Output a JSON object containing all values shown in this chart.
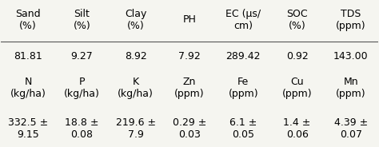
{
  "row1_headers": [
    "Sand\n(%)",
    "Silt\n(%)",
    "Clay\n(%)",
    "PH",
    "EC (μs/\ncm)",
    "SOC\n(%)",
    "TDS\n(ppm)"
  ],
  "row1_values": [
    "81.81",
    "9.27",
    "8.92",
    "7.92",
    "289.42",
    "0.92",
    "143.00"
  ],
  "row2_headers": [
    "N\n(kg/ha)",
    "P\n(kg/ha)",
    "K\n(kg/ha)",
    "Zn\n(ppm)",
    "Fe\n(ppm)",
    "Cu\n(ppm)",
    "Mn\n(ppm)"
  ],
  "row2_values": [
    "332.5 ±\n9.15",
    "18.8 ±\n0.08",
    "219.6 ±\n7.9",
    "0.29 ±\n0.03",
    "6.1 ±\n0.05",
    "1.4 ±\n0.06",
    "4.39 ±\n0.07"
  ],
  "bg_color": "#f5f5f0",
  "text_color": "#000000",
  "header_fontsize": 9,
  "value_fontsize": 9,
  "line_color": "#555555"
}
